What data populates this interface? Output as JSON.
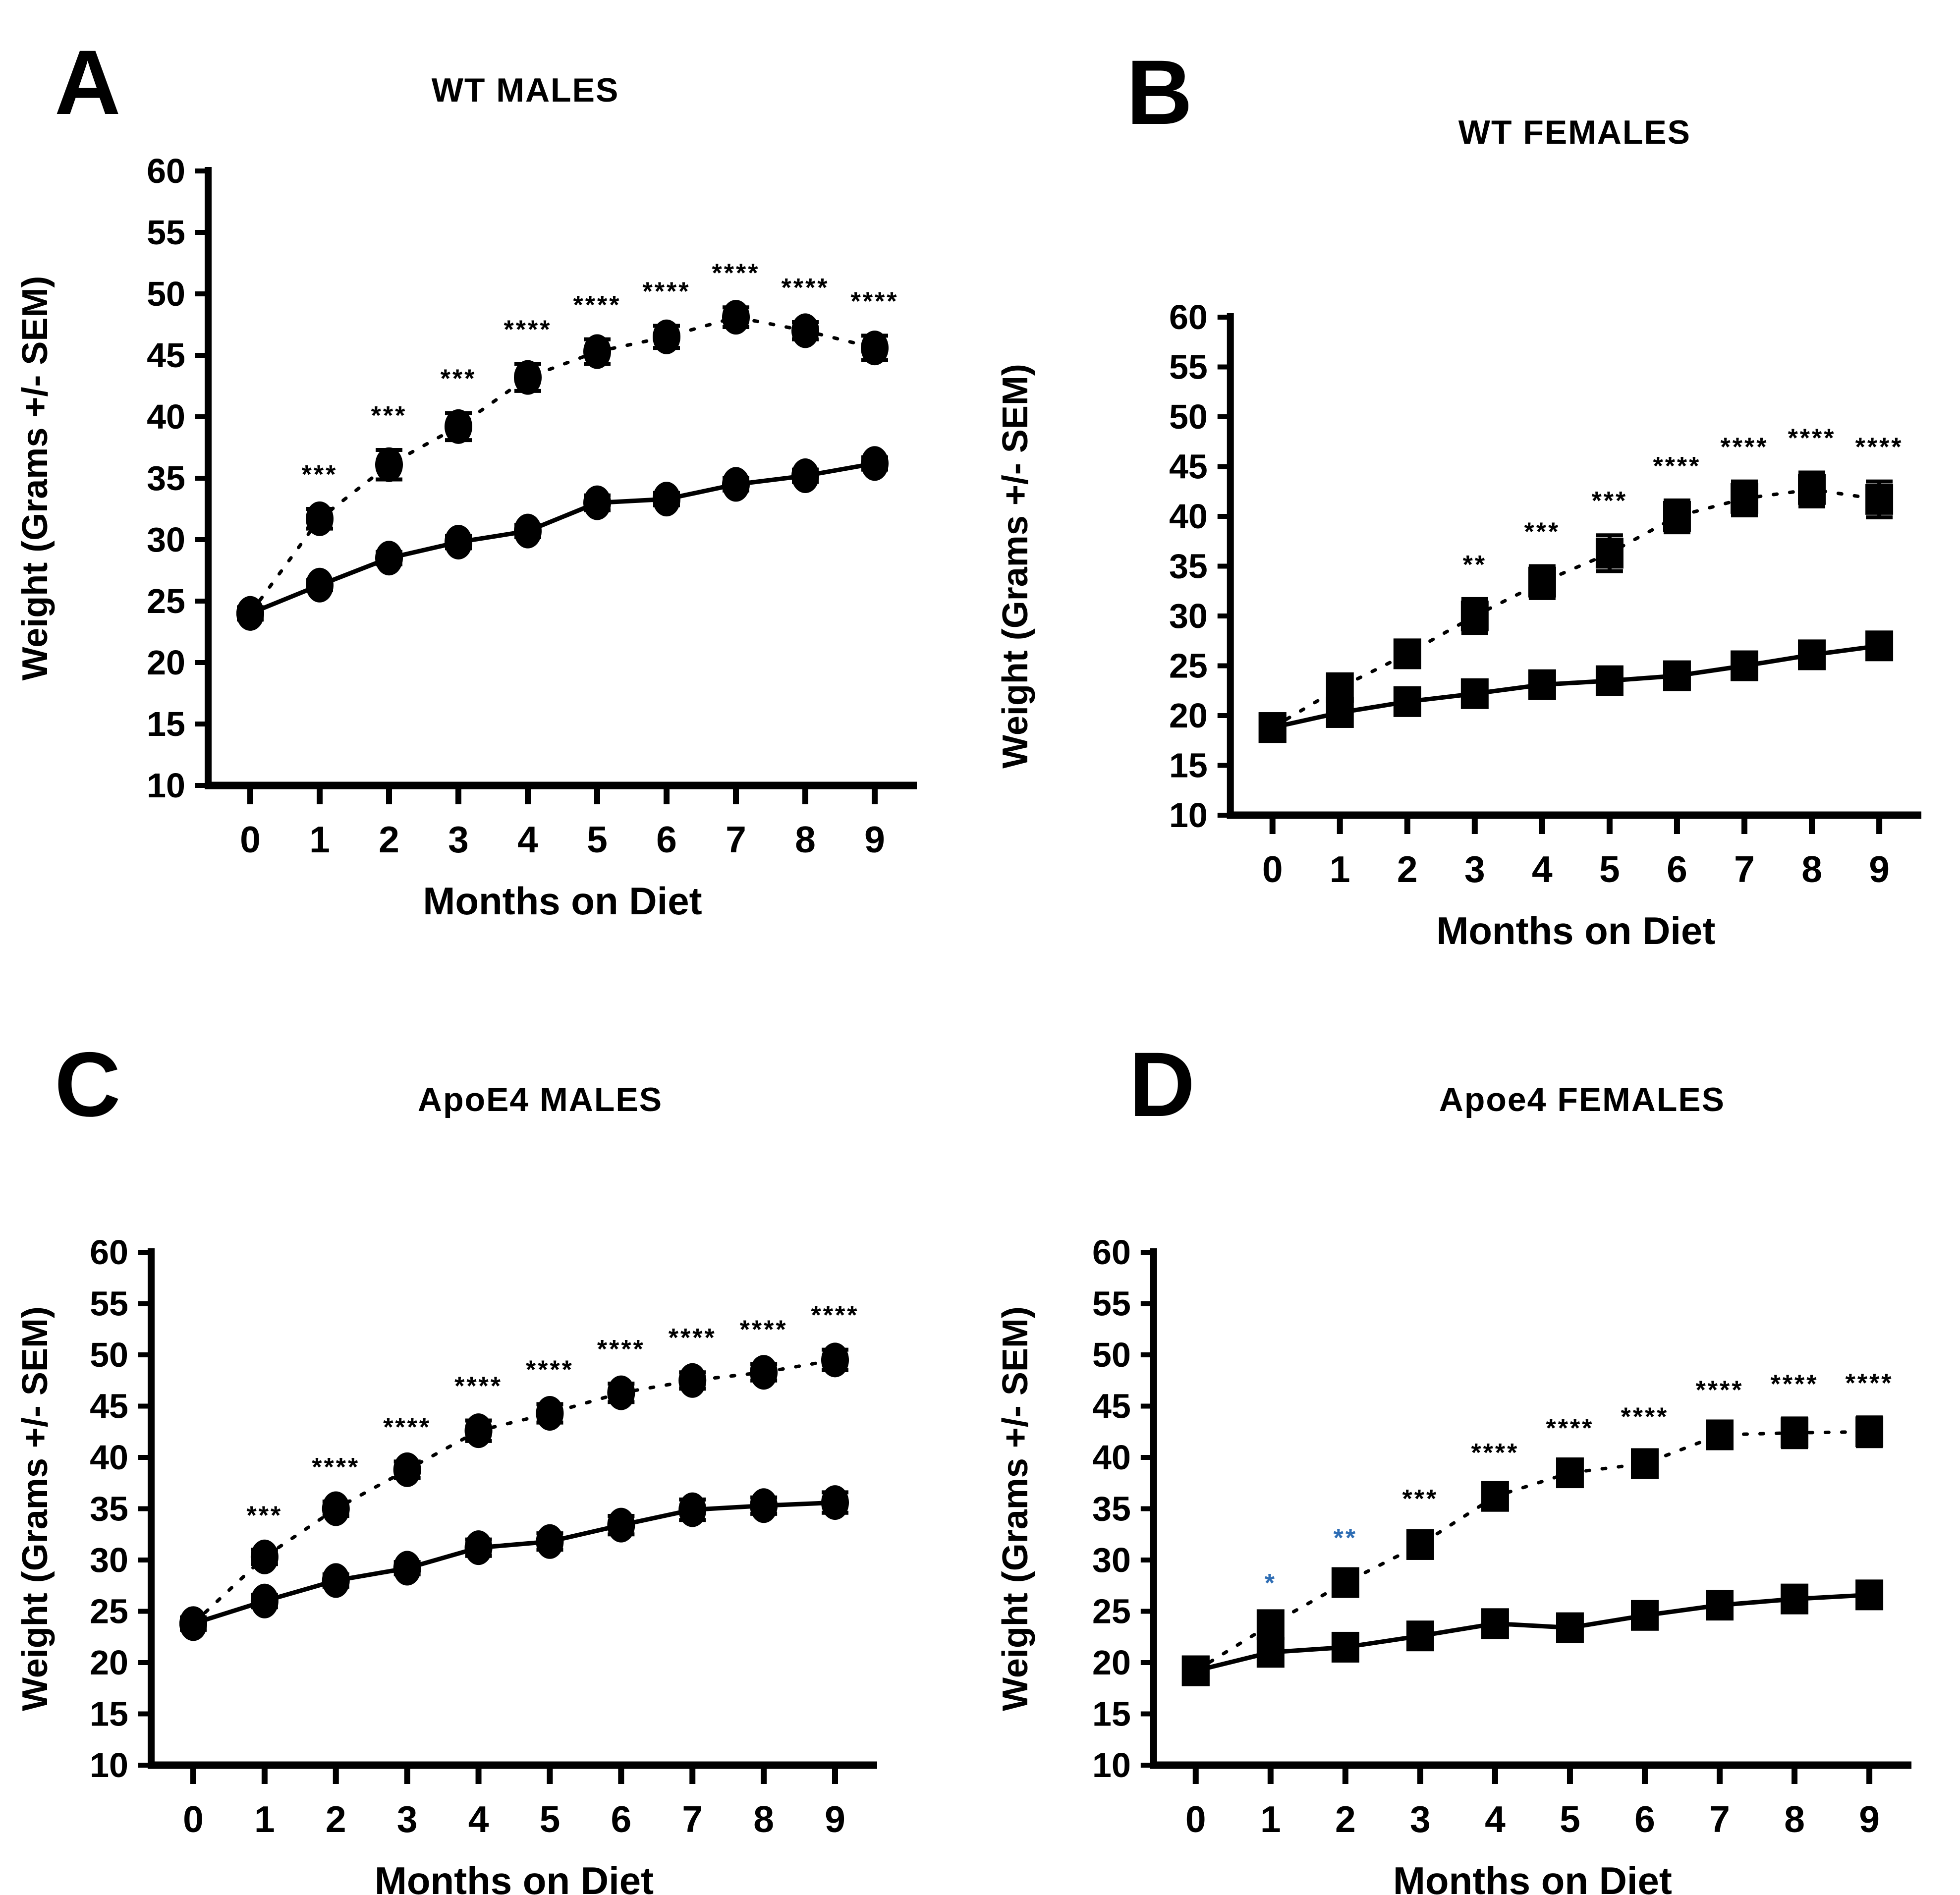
{
  "figure": {
    "background_color": "#ffffff",
    "foreground_color": "#000000",
    "significance_blue": "#2e6db4",
    "y_axis_label": "Weight (Grams +/- SEM)",
    "x_axis_label": "Months on  Diet",
    "y_ticks": [
      10,
      15,
      20,
      25,
      30,
      35,
      40,
      45,
      50,
      55,
      60
    ],
    "x_ticks": [
      0,
      1,
      2,
      3,
      4,
      5,
      6,
      7,
      8,
      9
    ],
    "ylim": [
      10,
      60
    ]
  },
  "chart_data": [
    {
      "type": "line",
      "panel_letter": "A",
      "title": "WT MALES",
      "xlabel": "Months on  Diet",
      "ylabel": "Weight (Grams +/- SEM)",
      "marker": "circle",
      "x": [
        0,
        1,
        2,
        3,
        4,
        5,
        6,
        7,
        8,
        9
      ],
      "ylim": [
        10,
        60
      ],
      "legend_position": "none",
      "grid": false,
      "series": [
        {
          "name": "dotted-line-series",
          "line_style": "dotted",
          "values": [
            24.0,
            31.7,
            36.1,
            39.2,
            43.2,
            45.3,
            46.5,
            48.1,
            47.0,
            45.6
          ],
          "sem": [
            0.5,
            0.8,
            1.2,
            1.1,
            1.1,
            1.0,
            0.9,
            0.8,
            0.7,
            1.0
          ]
        },
        {
          "name": "solid-line-series",
          "line_style": "solid",
          "values": [
            24.0,
            26.3,
            28.5,
            29.8,
            30.7,
            33.0,
            33.3,
            34.5,
            35.2,
            36.2
          ],
          "sem": [
            0.4,
            0.4,
            0.5,
            0.5,
            0.5,
            0.6,
            0.5,
            0.5,
            0.5,
            0.5
          ]
        }
      ],
      "significance": [
        {
          "month": 1,
          "label": "***",
          "color": "#000000"
        },
        {
          "month": 2,
          "label": "***",
          "color": "#000000"
        },
        {
          "month": 3,
          "label": "***",
          "color": "#000000"
        },
        {
          "month": 4,
          "label": "****",
          "color": "#000000"
        },
        {
          "month": 5,
          "label": "****",
          "color": "#000000"
        },
        {
          "month": 6,
          "label": "****",
          "color": "#000000"
        },
        {
          "month": 7,
          "label": "****",
          "color": "#000000"
        },
        {
          "month": 8,
          "label": "****",
          "color": "#000000"
        },
        {
          "month": 9,
          "label": "****",
          "color": "#000000"
        }
      ]
    },
    {
      "type": "line",
      "panel_letter": "B",
      "title": "WT FEMALES",
      "xlabel": "Months on  Diet",
      "ylabel": "Weight (Grams +/- SEM)",
      "marker": "square",
      "x": [
        0,
        1,
        2,
        3,
        4,
        5,
        6,
        7,
        8,
        9
      ],
      "ylim": [
        10,
        60
      ],
      "legend_position": "none",
      "grid": false,
      "series": [
        {
          "name": "dotted-line-series",
          "line_style": "dotted",
          "values": [
            18.8,
            22.8,
            26.2,
            30.0,
            33.4,
            36.3,
            40.0,
            41.8,
            42.7,
            41.7
          ],
          "sem": [
            0.5,
            0.9,
            1.3,
            1.7,
            1.6,
            1.8,
            1.6,
            1.7,
            1.7,
            1.8
          ]
        },
        {
          "name": "solid-line-series",
          "line_style": "solid",
          "values": [
            18.8,
            20.3,
            21.4,
            22.2,
            23.1,
            23.5,
            24.0,
            25.0,
            26.1,
            27.0
          ],
          "sem": [
            0.5,
            0.5,
            0.5,
            0.5,
            0.5,
            0.5,
            0.5,
            0.5,
            0.5,
            0.6
          ]
        }
      ],
      "significance": [
        {
          "month": 3,
          "label": "**",
          "color": "#000000"
        },
        {
          "month": 4,
          "label": "***",
          "color": "#000000"
        },
        {
          "month": 5,
          "label": "***",
          "color": "#000000"
        },
        {
          "month": 6,
          "label": "****",
          "color": "#000000"
        },
        {
          "month": 7,
          "label": "****",
          "color": "#000000"
        },
        {
          "month": 8,
          "label": "****",
          "color": "#000000"
        },
        {
          "month": 9,
          "label": "****",
          "color": "#000000"
        }
      ]
    },
    {
      "type": "line",
      "panel_letter": "C",
      "title": "ApoE4  MALES",
      "xlabel": "Months on  Diet",
      "ylabel": "Weight (Grams +/- SEM)",
      "marker": "circle",
      "x": [
        0,
        1,
        2,
        3,
        4,
        5,
        6,
        7,
        8,
        9
      ],
      "ylim": [
        10,
        60
      ],
      "legend_position": "none",
      "grid": false,
      "series": [
        {
          "name": "dotted-line-series",
          "line_style": "dotted",
          "values": [
            23.8,
            30.3,
            35.0,
            38.8,
            42.6,
            44.3,
            46.3,
            47.5,
            48.3,
            49.5
          ],
          "sem": [
            0.6,
            0.7,
            0.7,
            0.8,
            1.0,
            0.9,
            0.9,
            0.8,
            0.8,
            1.0
          ]
        },
        {
          "name": "solid-line-series",
          "line_style": "solid",
          "values": [
            23.8,
            26.0,
            28.0,
            29.2,
            31.2,
            31.8,
            33.4,
            34.9,
            35.3,
            35.6
          ],
          "sem": [
            0.6,
            0.6,
            0.6,
            0.6,
            0.8,
            0.8,
            0.9,
            1.0,
            0.8,
            1.0
          ]
        }
      ],
      "significance": [
        {
          "month": 1,
          "label": "***",
          "color": "#000000"
        },
        {
          "month": 2,
          "label": "****",
          "color": "#000000"
        },
        {
          "month": 3,
          "label": "****",
          "color": "#000000"
        },
        {
          "month": 4,
          "label": "****",
          "color": "#000000"
        },
        {
          "month": 5,
          "label": "****",
          "color": "#000000"
        },
        {
          "month": 6,
          "label": "****",
          "color": "#000000"
        },
        {
          "month": 7,
          "label": "****",
          "color": "#000000"
        },
        {
          "month": 8,
          "label": "****",
          "color": "#000000"
        },
        {
          "month": 9,
          "label": "****",
          "color": "#000000"
        }
      ]
    },
    {
      "type": "line",
      "panel_letter": "D",
      "title": "Apoe4  FEMALES",
      "xlabel": "Months on  Diet",
      "ylabel": "Weight (Grams +/- SEM)",
      "marker": "square",
      "x": [
        0,
        1,
        2,
        3,
        4,
        5,
        6,
        7,
        8,
        9
      ],
      "ylim": [
        10,
        60
      ],
      "legend_position": "none",
      "grid": false,
      "series": [
        {
          "name": "dotted-line-series",
          "line_style": "dotted",
          "values": [
            19.2,
            23.7,
            27.8,
            31.5,
            36.2,
            38.5,
            39.4,
            42.2,
            42.4,
            42.5
          ],
          "sem": [
            0.5,
            0.7,
            1.0,
            1.1,
            0.9,
            1.0,
            1.2,
            1.0,
            1.4,
            1.4
          ]
        },
        {
          "name": "solid-line-series",
          "line_style": "solid",
          "values": [
            19.2,
            21.0,
            21.5,
            22.6,
            23.8,
            23.4,
            24.6,
            25.6,
            26.2,
            26.6
          ],
          "sem": [
            0.6,
            0.6,
            0.5,
            0.5,
            0.6,
            0.6,
            0.5,
            0.5,
            0.5,
            0.5
          ]
        }
      ],
      "significance": [
        {
          "month": 1,
          "label": "*",
          "color": "#2e6db4"
        },
        {
          "month": 2,
          "label": "**",
          "color": "#2e6db4"
        },
        {
          "month": 3,
          "label": "***",
          "color": "#000000"
        },
        {
          "month": 4,
          "label": "****",
          "color": "#000000"
        },
        {
          "month": 5,
          "label": "****",
          "color": "#000000"
        },
        {
          "month": 6,
          "label": "****",
          "color": "#000000"
        },
        {
          "month": 7,
          "label": "****",
          "color": "#000000"
        },
        {
          "month": 8,
          "label": "****",
          "color": "#000000"
        },
        {
          "month": 9,
          "label": "****",
          "color": "#000000"
        }
      ]
    }
  ]
}
